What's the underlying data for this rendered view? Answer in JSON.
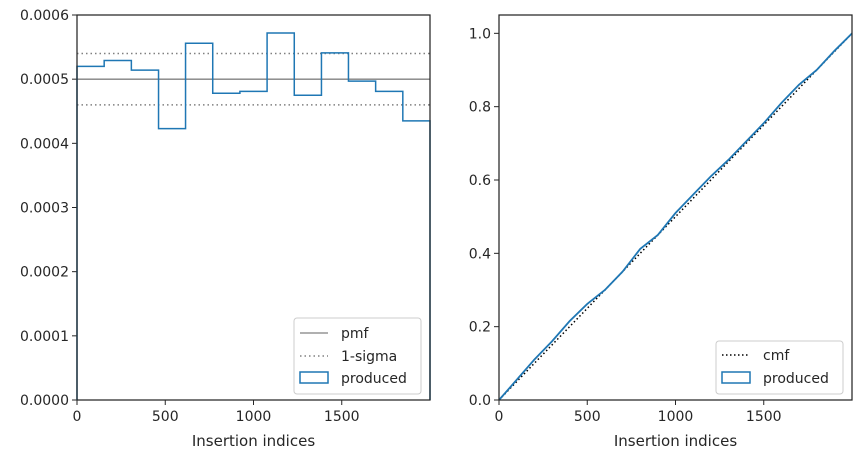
{
  "chart_data": [
    {
      "type": "histogram",
      "xlabel": "Insertion indices",
      "ylabel": "",
      "xlim": [
        0,
        2000
      ],
      "ylim": [
        0,
        0.0006
      ],
      "xticks": [
        0,
        500,
        1000,
        1500
      ],
      "yticks": [
        0.0,
        0.0001,
        0.0002,
        0.0003,
        0.0004,
        0.0005,
        0.0006
      ],
      "ytick_labels": [
        "0.0000",
        "0.0001",
        "0.0002",
        "0.0003",
        "0.0004",
        "0.0005",
        "0.0006"
      ],
      "grid": false,
      "legend_position": "lower-right",
      "pmf": {
        "name": "pmf",
        "value": 0.0005,
        "color": "#808080",
        "style": "solid"
      },
      "sigma": {
        "name": "1-sigma",
        "values": [
          0.00046,
          0.00054
        ],
        "color": "#808080",
        "style": "dotted"
      },
      "produced": {
        "name": "produced",
        "color": "#1f77b4",
        "bin_edges": [
          0,
          154,
          308,
          462,
          615,
          769,
          923,
          1077,
          1231,
          1385,
          1538,
          1692,
          1846,
          2000
        ],
        "values": [
          0.00052,
          0.000529,
          0.000514,
          0.000423,
          0.000556,
          0.000478,
          0.000481,
          0.000572,
          0.000475,
          0.000541,
          0.000497,
          0.000481,
          0.000435
        ]
      }
    },
    {
      "type": "line",
      "xlabel": "Insertion indices",
      "ylabel": "",
      "xlim": [
        0,
        2000
      ],
      "ylim": [
        0,
        1.05
      ],
      "xticks": [
        0,
        500,
        1000,
        1500
      ],
      "yticks": [
        0.0,
        0.2,
        0.4,
        0.6,
        0.8,
        1.0
      ],
      "ytick_labels": [
        "0.0",
        "0.2",
        "0.4",
        "0.6",
        "0.8",
        "1.0"
      ],
      "grid": false,
      "legend_position": "lower-right",
      "cmf": {
        "name": "cmf",
        "x": [
          0,
          2000
        ],
        "y": [
          0,
          1.0
        ],
        "color": "#000000",
        "style": "dotted"
      },
      "produced": {
        "name": "produced",
        "color": "#1f77b4",
        "x": [
          0,
          100,
          200,
          300,
          400,
          500,
          600,
          700,
          800,
          900,
          1000,
          1100,
          1200,
          1300,
          1400,
          1500,
          1600,
          1700,
          1800,
          1900,
          2000
        ],
        "y": [
          0,
          0.055,
          0.11,
          0.16,
          0.215,
          0.262,
          0.3,
          0.35,
          0.412,
          0.45,
          0.51,
          0.56,
          0.61,
          0.655,
          0.705,
          0.755,
          0.81,
          0.86,
          0.9,
          0.952,
          1.0
        ]
      }
    }
  ]
}
